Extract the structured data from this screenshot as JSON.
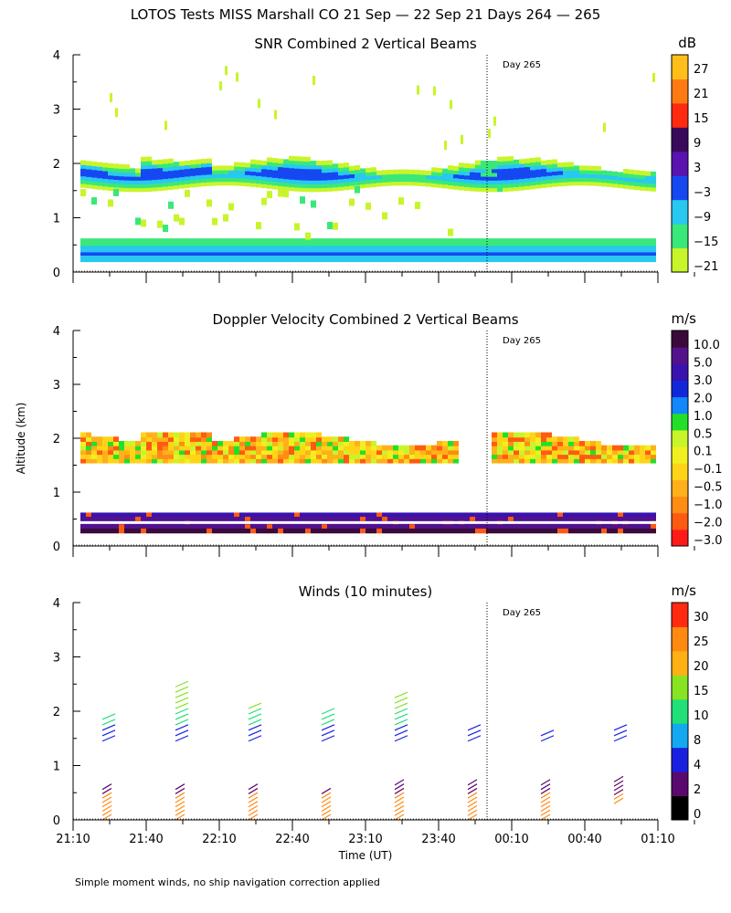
{
  "figure": {
    "title": "LOTOS Tests MISS Marshall CO  21 Sep — 22 Sep 21 Days 264 — 265",
    "ylabel": "Altitude (km)",
    "xlabel": "Time (UT)",
    "footnote": "Simple moment winds, no ship navigation correction applied",
    "day_marker": "Day 265"
  },
  "colors": {
    "axis": "#000000",
    "snr_scale": [
      "#c8f52a",
      "#3ae87a",
      "#29c8f0",
      "#1648f2",
      "#5a12b0",
      "#3a0a5a",
      "#ff2a10",
      "#ff7a12",
      "#ffbe1a"
    ],
    "vel_scale": [
      "#ff1a1a",
      "#ff5a12",
      "#ff8c14",
      "#ffb01a",
      "#ffd418",
      "#f0f020",
      "#c8f52a",
      "#22e028",
      "#1288ff",
      "#1228d8",
      "#3a12b0",
      "#52128c",
      "#3a0a3a"
    ],
    "wind_scale": [
      "#000000",
      "#5a0a6e",
      "#1a20e0",
      "#14a8f0",
      "#22e078",
      "#88e422",
      "#ffb014",
      "#ff8a12",
      "#ff2a10"
    ]
  },
  "chart_data": [
    {
      "type": "heatmap",
      "title": "SNR Combined 2 Vertical Beams",
      "unit": "dB",
      "xlim": [
        "21:10",
        "01:10"
      ],
      "ylim": [
        0,
        4
      ],
      "yticks": [
        "0",
        "1",
        "2",
        "3",
        "4"
      ],
      "colorbar_ticks": [
        "27",
        "21",
        "15",
        "9",
        "3",
        "−3",
        "−9",
        "−15",
        "−21"
      ],
      "features": [
        {
          "name": "upper layer",
          "top_km": 2.0,
          "bottom_km": 1.5,
          "peak_dB": 3
        },
        {
          "name": "boundary layer",
          "top_km": 0.6,
          "bottom_km": 0.25,
          "peak_dB": 3
        }
      ]
    },
    {
      "type": "heatmap",
      "title": "Doppler Velocity Combined 2 Vertical Beams",
      "unit": "m/s",
      "xlim": [
        "21:10",
        "01:10"
      ],
      "ylim": [
        0,
        4
      ],
      "yticks": [
        "0",
        "1",
        "2",
        "3",
        "4"
      ],
      "colorbar_ticks": [
        "10.0",
        "5.0",
        "3.0",
        "2.0",
        "1.0",
        "0.5",
        "0.1",
        "−0.1",
        "−0.5",
        "−1.0",
        "−2.0",
        "−3.0"
      ]
    },
    {
      "type": "scatter",
      "title": "Winds (10 minutes)",
      "unit": "m/s",
      "xlim": [
        "21:10",
        "01:10"
      ],
      "ylim": [
        0,
        4
      ],
      "yticks": [
        "0",
        "1",
        "2",
        "3",
        "4"
      ],
      "xticks": [
        "21:10",
        "21:40",
        "22:10",
        "22:40",
        "23:10",
        "23:40",
        "00:10",
        "00:40",
        "01:10"
      ],
      "colorbar_ticks": [
        "30",
        "25",
        "20",
        "15",
        "10",
        "8",
        "4",
        "2",
        "0"
      ],
      "profiles": [
        {
          "time": "21:25",
          "upper": [
            1.5,
            2.0
          ],
          "lower": [
            0.0,
            0.6
          ]
        },
        {
          "time": "21:55",
          "upper": [
            1.5,
            2.6
          ],
          "lower": [
            0.0,
            0.6
          ]
        },
        {
          "time": "22:25",
          "upper": [
            1.5,
            2.2
          ],
          "lower": [
            0.0,
            0.6
          ]
        },
        {
          "time": "22:55",
          "upper": [
            1.5,
            2.1
          ],
          "lower": [
            0.0,
            0.5
          ]
        },
        {
          "time": "23:25",
          "upper": [
            1.5,
            2.4
          ],
          "lower": [
            0.0,
            0.7
          ]
        },
        {
          "time": "23:55",
          "upper": [
            1.5,
            1.8
          ],
          "lower": [
            0.0,
            0.7
          ]
        },
        {
          "time": "00:25",
          "upper": [
            1.5,
            1.7
          ],
          "lower": [
            0.0,
            0.7
          ]
        },
        {
          "time": "00:55",
          "upper": [
            1.5,
            1.8
          ],
          "lower": [
            0.3,
            0.7
          ]
        }
      ]
    }
  ]
}
